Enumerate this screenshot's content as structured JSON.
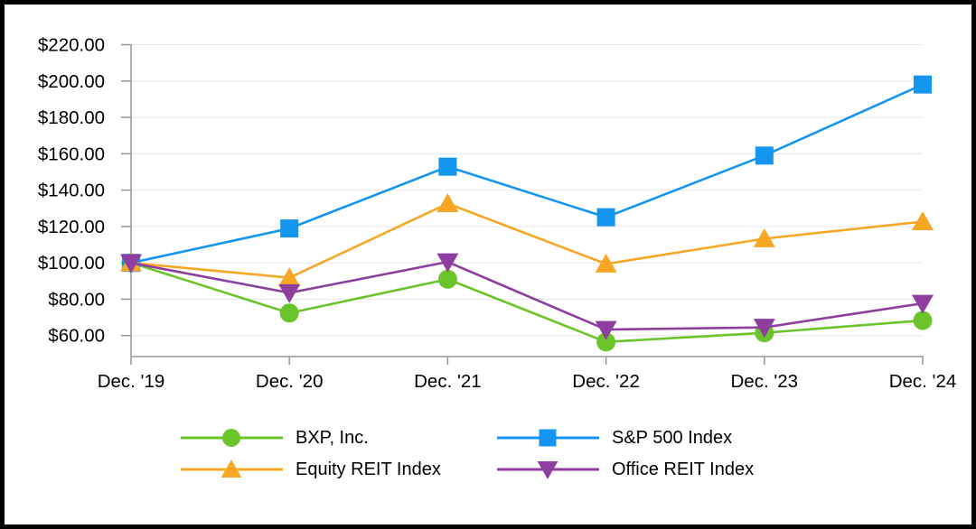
{
  "chart_data": {
    "type": "line",
    "title": "",
    "categories": [
      "Dec. '19",
      "Dec. '20",
      "Dec. '21",
      "Dec. '22",
      "Dec. '23",
      "Dec. '24"
    ],
    "series": [
      {
        "name": "BXP, Inc.",
        "color": "#6CC42C",
        "marker": "circle",
        "values": [
          100,
          72.4,
          91.0,
          56.5,
          61.5,
          68.3
        ]
      },
      {
        "name": "S&P 500 Index",
        "color": "#1496F0",
        "marker": "square",
        "values": [
          100,
          118.9,
          152.9,
          125.1,
          159.0,
          198.1
        ]
      },
      {
        "name": "Equity REIT Index",
        "color": "#F8A725",
        "marker": "triangle-up",
        "values": [
          100,
          91.8,
          132.6,
          99.4,
          113.3,
          122.7
        ]
      },
      {
        "name": "Office REIT Index",
        "color": "#8E3E9E",
        "marker": "triangle-down",
        "values": [
          100,
          83.5,
          100.5,
          63.3,
          64.5,
          77.7
        ]
      }
    ],
    "y_ticks": [
      220,
      200,
      180,
      160,
      140,
      120,
      100,
      80,
      60
    ],
    "y_tick_labels": [
      "$220.00",
      "$200.00",
      "$180.00",
      "$160.00",
      "$140.00",
      "$120.00",
      "$100.00",
      "$80.00",
      "$60.00"
    ],
    "ylim": [
      48.4,
      220
    ],
    "xlabel": "",
    "ylabel": "",
    "grid": true,
    "legend_position": "bottom",
    "legend_layout": "2x2",
    "axis_color": "#969696",
    "grid_color": "#E7E7E7",
    "text_color": "#000000"
  }
}
